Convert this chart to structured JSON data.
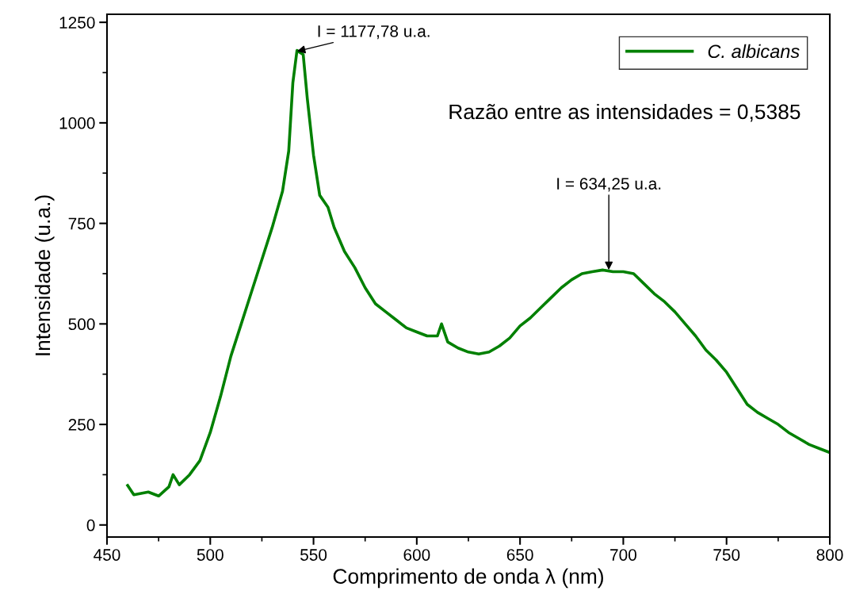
{
  "chart_data": {
    "type": "line",
    "xlabel": "Comprimento de onda λ (nm)",
    "ylabel": "Intensidade (u.a.)",
    "xlim": [
      450,
      800
    ],
    "xticks": [
      450,
      500,
      550,
      600,
      650,
      700,
      750,
      800
    ],
    "ylim": [
      -30,
      1270
    ],
    "yticks": [
      0,
      250,
      500,
      750,
      1000,
      1250
    ],
    "legend": "top right",
    "grid": false,
    "series": [
      {
        "name": "C. albicans",
        "color": "#008000",
        "x": [
          460,
          463,
          470,
          475,
          480,
          482,
          485,
          490,
          495,
          500,
          505,
          510,
          515,
          520,
          525,
          530,
          535,
          538,
          540,
          542,
          545,
          547,
          550,
          553,
          557,
          560,
          565,
          570,
          575,
          580,
          585,
          590,
          595,
          600,
          605,
          610,
          612,
          615,
          620,
          625,
          630,
          635,
          640,
          645,
          650,
          655,
          660,
          665,
          670,
          675,
          680,
          685,
          690,
          695,
          700,
          705,
          710,
          715,
          720,
          725,
          730,
          735,
          740,
          745,
          750,
          755,
          760,
          765,
          770,
          775,
          780,
          785,
          790,
          795,
          800
        ],
        "values": [
          98,
          75,
          82,
          72,
          95,
          125,
          100,
          125,
          160,
          230,
          320,
          420,
          500,
          580,
          660,
          740,
          830,
          930,
          1100,
          1180,
          1170,
          1060,
          920,
          820,
          790,
          740,
          680,
          640,
          590,
          550,
          530,
          510,
          490,
          480,
          470,
          470,
          500,
          455,
          440,
          430,
          425,
          430,
          445,
          465,
          495,
          515,
          540,
          565,
          590,
          610,
          625,
          630,
          634,
          630,
          630,
          625,
          600,
          575,
          555,
          530,
          500,
          470,
          435,
          410,
          380,
          340,
          300,
          280,
          265,
          250,
          230,
          215,
          200,
          190,
          180
        ]
      }
    ],
    "annotations": [
      {
        "text": "I = 1177,78 u.a.",
        "x": 542,
        "y": 1177.78
      },
      {
        "text": "I = 634,25 u.a.",
        "x": 693,
        "y": 634.25
      },
      "Razão entre as intensidades = 0,5385"
    ]
  }
}
